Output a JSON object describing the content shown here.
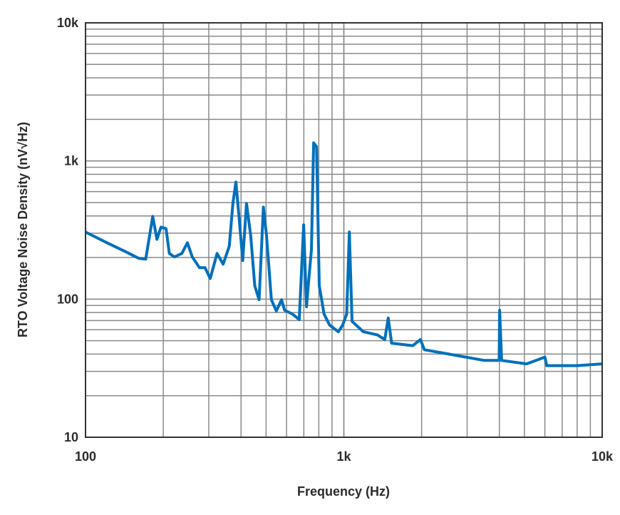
{
  "chart_data": {
    "type": "line",
    "title": "",
    "xlabel": "Frequency (Hz)",
    "ylabel": "RTO Voltage Noise Density (nV√Hz)",
    "x_scale": "log",
    "y_scale": "log",
    "xlim": [
      100,
      10000
    ],
    "ylim": [
      10,
      10000
    ],
    "x_ticks": [
      {
        "value": 100,
        "label": "100"
      },
      {
        "value": 1000,
        "label": "1k"
      },
      {
        "value": 10000,
        "label": "10k"
      }
    ],
    "y_ticks": [
      {
        "value": 10,
        "label": "10"
      },
      {
        "value": 100,
        "label": "100"
      },
      {
        "value": 1000,
        "label": "1k"
      },
      {
        "value": 10000,
        "label": "10k"
      }
    ],
    "grid": true,
    "line_color": "#0070BB",
    "grid_color": "#8a8a8a",
    "series": [
      {
        "x": [
          100,
          121,
          142,
          161,
          171,
          182,
          189,
          196,
          205,
          211,
          221,
          236,
          248,
          259,
          276,
          290,
          304,
          323,
          341,
          360,
          372,
          382,
          392,
          406,
          420,
          436,
          452,
          470,
          488,
          502,
          524,
          548,
          574,
          590,
          632,
          672,
          699,
          717,
          732,
          749,
          764,
          784,
          803,
          838,
          880,
          952,
          990,
          1026,
          1050,
          1076,
          1190,
          1350,
          1440,
          1485,
          1530,
          1850,
          1980,
          2050,
          2550,
          3500,
          3990,
          4010,
          4080,
          5100,
          6000,
          6100,
          8000,
          10000
        ],
        "y": [
          306,
          256,
          222,
          197,
          195,
          397,
          271,
          332,
          324,
          214,
          202,
          214,
          256,
          202,
          169,
          169,
          141,
          214,
          179,
          241,
          492,
          703,
          411,
          190,
          492,
          288,
          125,
          99,
          463,
          288,
          99,
          82,
          99,
          83,
          78,
          71,
          345,
          88,
          141,
          227,
          1352,
          1270,
          125,
          78,
          65,
          58,
          65,
          78,
          306,
          69,
          58,
          55,
          51,
          73,
          48,
          46,
          51,
          43,
          40,
          36,
          36,
          83,
          36,
          34,
          38,
          33,
          33,
          34
        ]
      }
    ]
  }
}
